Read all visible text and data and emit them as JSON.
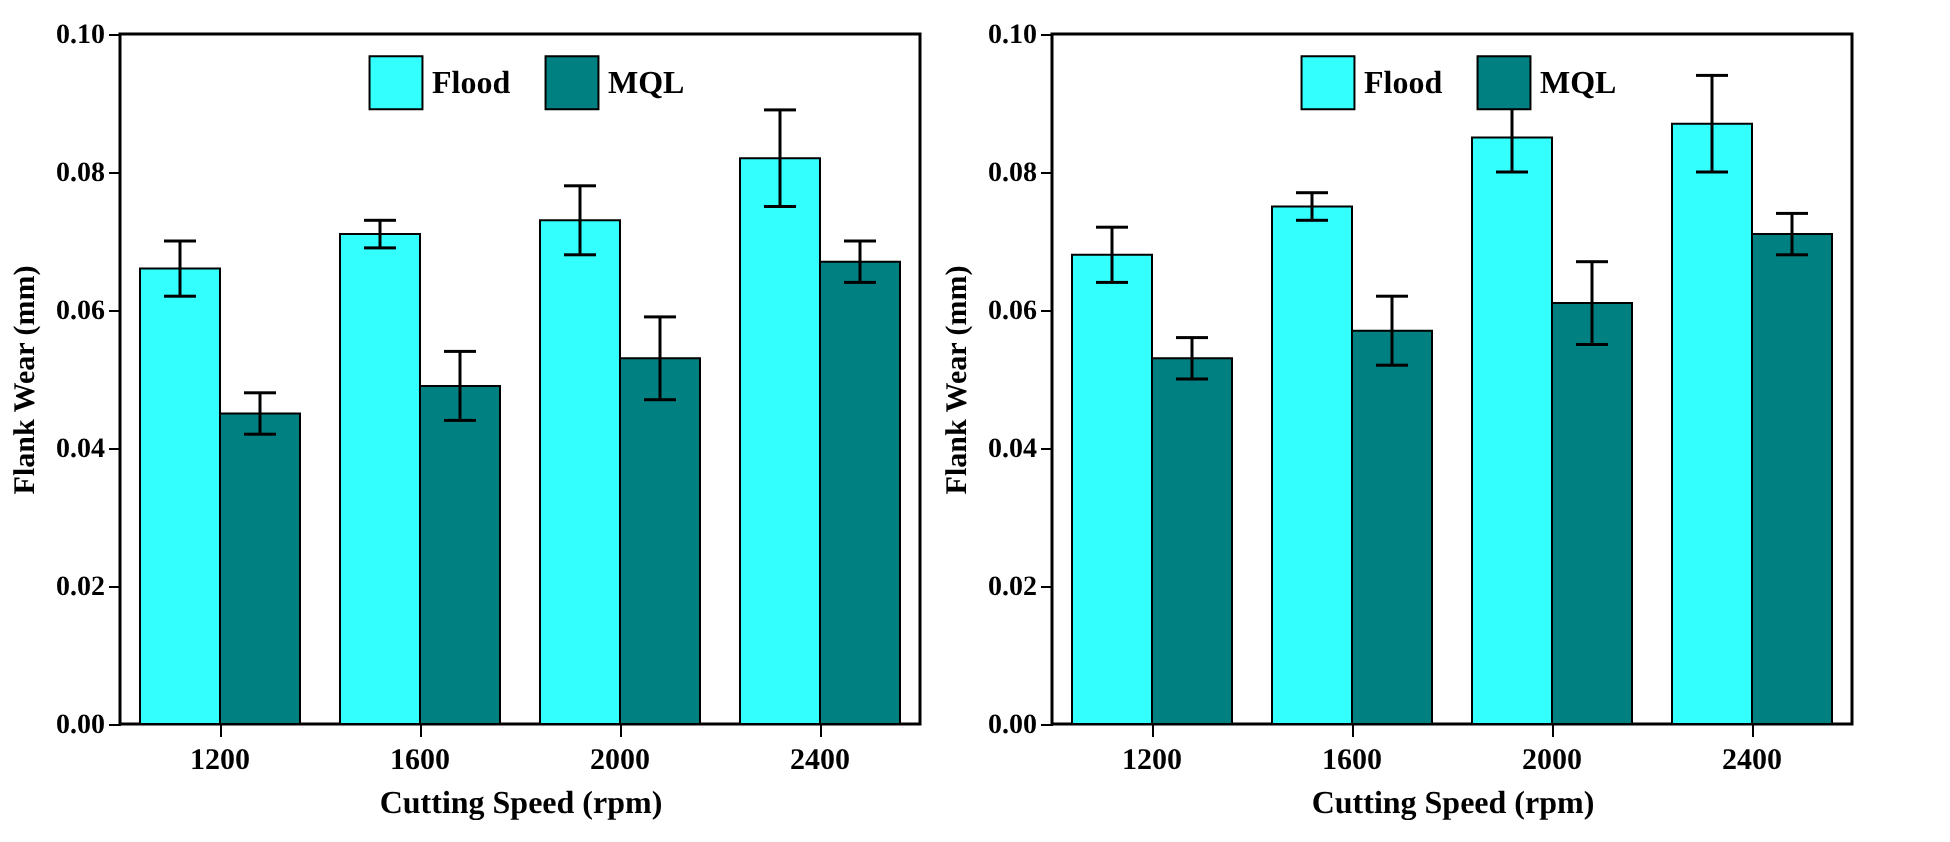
{
  "chart_data": [
    {
      "type": "bar",
      "xlabel": "Cutting Speed (rpm)",
      "ylabel": "Flank Wear (mm)",
      "categories": [
        "1200",
        "1600",
        "2000",
        "2400"
      ],
      "series": [
        {
          "name": "Flood",
          "color": "#33ffff",
          "values": [
            0.066,
            0.071,
            0.073,
            0.082
          ],
          "errors": [
            0.004,
            0.002,
            0.005,
            0.007
          ]
        },
        {
          "name": "MQL",
          "color": "#008080",
          "values": [
            0.045,
            0.049,
            0.053,
            0.067
          ],
          "errors": [
            0.003,
            0.005,
            0.006,
            0.003
          ]
        }
      ],
      "ylim": [
        0,
        0.1
      ],
      "yticks": [
        {
          "value": 0,
          "label": "0.00"
        },
        {
          "value": 0.02,
          "label": "0.02"
        },
        {
          "value": 0.04,
          "label": "0.04"
        },
        {
          "value": 0.06,
          "label": "0.06"
        },
        {
          "value": 0.08,
          "label": "0.08"
        },
        {
          "value": 0.1,
          "label": "0.10"
        }
      ],
      "grid": false,
      "legend": "top"
    },
    {
      "type": "bar",
      "xlabel": "Cutting Speed (rpm)",
      "ylabel": "Flank Wear (mm)",
      "categories": [
        "1200",
        "1600",
        "2000",
        "2400"
      ],
      "series": [
        {
          "name": "Flood",
          "color": "#33ffff",
          "values": [
            0.068,
            0.075,
            0.085,
            0.087
          ],
          "errors": [
            0.004,
            0.002,
            0.005,
            0.007
          ]
        },
        {
          "name": "MQL",
          "color": "#008080",
          "values": [
            0.053,
            0.057,
            0.061,
            0.071
          ],
          "errors": [
            0.003,
            0.005,
            0.006,
            0.003
          ]
        }
      ],
      "ylim": [
        0,
        0.1
      ],
      "yticks": [
        {
          "value": 0,
          "label": "0.00"
        },
        {
          "value": 0.02,
          "label": "0.02"
        },
        {
          "value": 0.04,
          "label": "0.04"
        },
        {
          "value": 0.06,
          "label": "0.06"
        },
        {
          "value": 0.08,
          "label": "0.08"
        },
        {
          "value": 0.1,
          "label": "0.10"
        }
      ],
      "grid": false,
      "legend": "top"
    }
  ]
}
